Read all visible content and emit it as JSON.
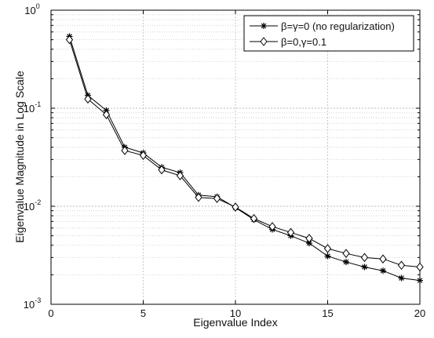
{
  "chart_data": {
    "type": "line",
    "title": "",
    "xlabel": "Eigenvalue Index",
    "ylabel": "Eigenvalue Magnitude in Log Scale",
    "xlim": [
      0,
      20
    ],
    "ylim": [
      0.001,
      1
    ],
    "yscale": "log",
    "grid": true,
    "legend_placement": "top-right",
    "x_ticks": [
      "0",
      "5",
      "10",
      "15",
      "20"
    ],
    "x_tick_values": [
      0,
      5,
      10,
      15,
      20
    ],
    "y_ticks": [
      {
        "base": "10",
        "exp": "-3",
        "value": 0.001
      },
      {
        "base": "10",
        "exp": "-2",
        "value": 0.01
      },
      {
        "base": "10",
        "exp": "-1",
        "value": 0.1
      },
      {
        "base": "10",
        "exp": "0",
        "value": 1
      }
    ],
    "x": [
      1,
      2,
      3,
      4,
      5,
      6,
      7,
      8,
      9,
      10,
      11,
      12,
      13,
      14,
      15,
      16,
      17,
      18,
      19,
      20
    ],
    "series": [
      {
        "name": "β=γ=0 (no regularization)",
        "marker": "star",
        "color": "#000000",
        "values": [
          0.54,
          0.135,
          0.095,
          0.04,
          0.035,
          0.025,
          0.022,
          0.013,
          0.0125,
          0.0097,
          0.0073,
          0.0058,
          0.005,
          0.0042,
          0.0031,
          0.0027,
          0.0024,
          0.0022,
          0.00185,
          0.00175
        ]
      },
      {
        "name": "β=0,γ=0.1",
        "marker": "diamond",
        "color": "#000000",
        "values": [
          0.5,
          0.124,
          0.086,
          0.037,
          0.033,
          0.0235,
          0.0205,
          0.0123,
          0.012,
          0.0098,
          0.0075,
          0.0062,
          0.0054,
          0.0047,
          0.0037,
          0.0033,
          0.003,
          0.0029,
          0.0025,
          0.0024
        ]
      }
    ]
  }
}
